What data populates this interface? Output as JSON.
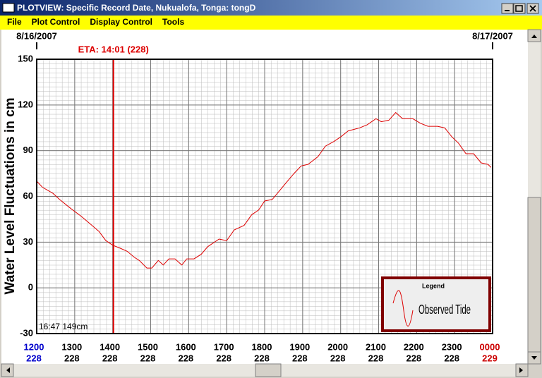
{
  "window": {
    "title": "PLOTVIEW: Specific Record Date, Nukualofa, Tonga: tongD",
    "menu": [
      "File",
      "Plot Control",
      "Display Control",
      "Tools"
    ]
  },
  "chart_data": {
    "type": "line",
    "ylabel": "Water Level Fluctuations in cm",
    "xlim": [
      12,
      24
    ],
    "ylim": [
      -30,
      150
    ],
    "yticks": [
      -30,
      0,
      30,
      60,
      90,
      120,
      150
    ],
    "xticks": [
      {
        "value": 12,
        "label": "1200"
      },
      {
        "value": 13,
        "label": "1300"
      },
      {
        "value": 14,
        "label": "1400"
      },
      {
        "value": 15,
        "label": "1500"
      },
      {
        "value": 16,
        "label": "1600"
      },
      {
        "value": 17,
        "label": "1700"
      },
      {
        "value": 18,
        "label": "1800"
      },
      {
        "value": 19,
        "label": "1900"
      },
      {
        "value": 20,
        "label": "2000"
      },
      {
        "value": 21,
        "label": "2100"
      },
      {
        "value": 22,
        "label": "2200"
      },
      {
        "value": 23,
        "label": "2300"
      },
      {
        "value": 24,
        "label": "0000"
      }
    ],
    "xtick_days": [
      "228",
      "228",
      "228",
      "228",
      "228",
      "228",
      "228",
      "228",
      "228",
      "228",
      "228",
      "228",
      "229"
    ],
    "xtick_colors": [
      "#0000cc",
      "#000000",
      "#000000",
      "#000000",
      "#000000",
      "#000000",
      "#000000",
      "#000000",
      "#000000",
      "#000000",
      "#000000",
      "#000000",
      "#cc0000"
    ],
    "top_dates": [
      {
        "value": 12,
        "label": "8/16/2007"
      },
      {
        "value": 24,
        "label": "8/17/2007"
      }
    ],
    "eta": {
      "value": 14.02,
      "label": "ETA: 14:01 (228)",
      "color": "#dd0000"
    },
    "cursor_readout": "16:47  149cm",
    "grid": true,
    "legend_title": "Legend",
    "x": [
      12.0,
      12.15,
      12.43,
      12.6,
      12.9,
      13.17,
      13.36,
      13.64,
      13.82,
      14.0,
      14.2,
      14.38,
      14.57,
      14.7,
      14.9,
      15.03,
      15.2,
      15.33,
      15.48,
      15.64,
      15.82,
      15.95,
      16.14,
      16.33,
      16.5,
      16.8,
      17.0,
      17.2,
      17.46,
      17.66,
      17.84,
      18.0,
      18.2,
      18.4,
      18.6,
      18.77,
      18.96,
      19.14,
      19.4,
      19.6,
      19.82,
      20.0,
      20.2,
      20.5,
      20.7,
      20.93,
      21.07,
      21.27,
      21.45,
      21.63,
      21.9,
      22.1,
      22.3,
      22.55,
      22.74,
      22.93,
      23.1,
      23.3,
      23.5,
      23.7,
      23.88,
      23.96
    ],
    "series": [
      {
        "name": "Observed Tide",
        "color": "#dd0000",
        "values": [
          70,
          66,
          62,
          58,
          52,
          47,
          43,
          37,
          31,
          28,
          26,
          24,
          20,
          18,
          13,
          13,
          18,
          15,
          19,
          19,
          15,
          19,
          19,
          22,
          27,
          32,
          31,
          38,
          41,
          48,
          51,
          57,
          58,
          64,
          70,
          75,
          80,
          81,
          86,
          93,
          96,
          99,
          103,
          105,
          107,
          111,
          109,
          110,
          115,
          111,
          111,
          108,
          106,
          106,
          105,
          99,
          95,
          88,
          88,
          82,
          81,
          79
        ]
      }
    ]
  }
}
